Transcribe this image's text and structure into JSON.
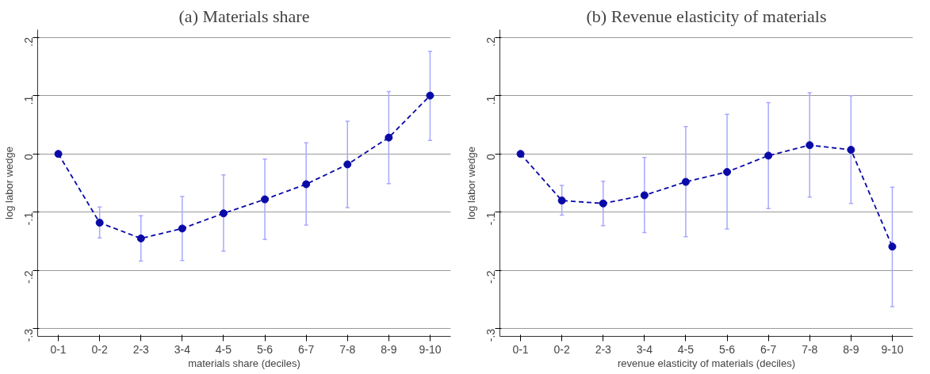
{
  "chart_data": [
    {
      "type": "line",
      "title": "(a) Materials share",
      "xlabel": "materials share (deciles)",
      "ylabel": "log labor wedge",
      "categories": [
        "0-1",
        "0-2",
        "2-3",
        "3-4",
        "4-5",
        "5-6",
        "6-7",
        "7-8",
        "8-9",
        "9-10"
      ],
      "series": [
        {
          "color": "#0a0aa8",
          "values": [
            0,
            -0.118,
            -0.145,
            -0.128,
            -0.102,
            -0.078,
            -0.052,
            -0.018,
            0.028,
            0.1
          ],
          "errors": [
            null,
            [
              -0.144,
              -0.091
            ],
            [
              -0.184,
              -0.106
            ],
            [
              -0.183,
              -0.073
            ],
            [
              -0.167,
              -0.036
            ],
            [
              -0.147,
              -0.009
            ],
            [
              -0.122,
              0.019
            ],
            [
              -0.092,
              0.056
            ],
            [
              -0.051,
              0.107
            ],
            [
              0.023,
              0.176
            ]
          ]
        }
      ],
      "ylim": [
        -0.313,
        0.213
      ],
      "yticks": [
        {
          "value": -0.3,
          "label": "-.3"
        },
        {
          "value": -0.2,
          "label": "-.2"
        },
        {
          "value": -0.1,
          "label": "-.1"
        },
        0,
        {
          "value": 0.1,
          "label": ".1"
        },
        {
          "value": 0.2,
          "label": ".2"
        }
      ],
      "grid": "y",
      "marker": "circle",
      "line_style": "dashed"
    },
    {
      "type": "line",
      "title": "(b) Revenue elasticity of materials",
      "xlabel": "revenue elasticity of materials (deciles)",
      "ylabel": "log labor wedge",
      "categories": [
        "0-1",
        "0-2",
        "2-3",
        "3-4",
        "4-5",
        "5-6",
        "6-7",
        "7-8",
        "8-9",
        "9-10"
      ],
      "series": [
        {
          "color": "#0a0aa8",
          "values": [
            0,
            -0.08,
            -0.085,
            -0.071,
            -0.048,
            -0.031,
            -0.003,
            0.015,
            0.007,
            -0.159
          ],
          "errors": [
            null,
            [
              -0.105,
              -0.054
            ],
            [
              -0.123,
              -0.047
            ],
            [
              -0.135,
              -0.006
            ],
            [
              -0.142,
              0.047
            ],
            [
              -0.129,
              0.068
            ],
            [
              -0.094,
              0.088
            ],
            [
              -0.074,
              0.105
            ],
            [
              -0.085,
              0.1
            ],
            [
              -0.262,
              -0.057
            ]
          ]
        }
      ],
      "ylim": [
        -0.313,
        0.213
      ],
      "yticks": [
        {
          "value": -0.3,
          "label": "-.3"
        },
        {
          "value": -0.2,
          "label": "-.2"
        },
        {
          "value": -0.1,
          "label": "-.1"
        },
        0,
        {
          "value": 0.1,
          "label": ".1"
        },
        {
          "value": 0.2,
          "label": ".2"
        }
      ],
      "grid": "y",
      "marker": "circle",
      "line_style": "dashed"
    }
  ]
}
